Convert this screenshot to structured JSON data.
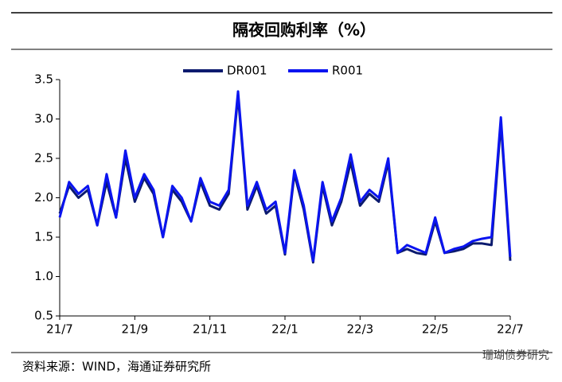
{
  "chart_data": {
    "type": "line",
    "title": "隔夜回购利率（%）",
    "categories": [
      "21/7",
      null,
      null,
      null,
      null,
      null,
      null,
      null,
      "21/9",
      null,
      null,
      null,
      null,
      null,
      null,
      null,
      "21/11",
      null,
      null,
      null,
      null,
      null,
      null,
      null,
      "22/1",
      null,
      null,
      null,
      null,
      null,
      null,
      null,
      "22/3",
      null,
      null,
      null,
      null,
      null,
      null,
      null,
      "22/5",
      null,
      null,
      null,
      null,
      null,
      null,
      null,
      "22/7"
    ],
    "series": [
      {
        "name": "DR001",
        "color": "#0b1a6e",
        "values": [
          1.8,
          2.15,
          2.0,
          2.1,
          1.65,
          2.2,
          1.75,
          2.5,
          1.95,
          2.25,
          2.05,
          1.5,
          2.1,
          1.95,
          1.7,
          2.2,
          1.9,
          1.85,
          2.05,
          3.3,
          1.85,
          2.15,
          1.8,
          1.9,
          1.28,
          2.3,
          1.85,
          1.18,
          2.15,
          1.65,
          1.95,
          2.45,
          1.9,
          2.05,
          1.95,
          2.45,
          1.3,
          1.35,
          1.3,
          1.28,
          1.7,
          1.3,
          1.32,
          1.35,
          1.42,
          1.42,
          1.4,
          2.95,
          1.2
        ]
      },
      {
        "name": "R001",
        "color": "#0a14f0",
        "values": [
          1.75,
          2.2,
          2.05,
          2.15,
          1.65,
          2.3,
          1.75,
          2.6,
          2.0,
          2.3,
          2.1,
          1.5,
          2.15,
          2.0,
          1.7,
          2.25,
          1.95,
          1.9,
          2.1,
          3.35,
          1.9,
          2.2,
          1.85,
          1.95,
          1.3,
          2.35,
          1.9,
          1.2,
          2.2,
          1.7,
          2.0,
          2.55,
          1.95,
          2.1,
          2.0,
          2.5,
          1.3,
          1.4,
          1.35,
          1.3,
          1.75,
          1.3,
          1.35,
          1.38,
          1.45,
          1.48,
          1.5,
          3.02,
          1.25
        ]
      }
    ],
    "ylim": [
      0.5,
      3.5
    ],
    "yticks": [
      {
        "value": 0.5,
        "label": "0.5"
      },
      {
        "value": 1,
        "label": "1.0"
      },
      {
        "value": 1.5,
        "label": "1.5"
      },
      {
        "value": 2,
        "label": "2.0"
      },
      {
        "value": 2.5,
        "label": "2.5"
      },
      {
        "value": 3,
        "label": "3.0"
      },
      {
        "value": 3.5,
        "label": "3.5"
      }
    ],
    "source": "资料来源：WIND，海通证券研究所",
    "watermark": "珊瑚债券研究"
  }
}
